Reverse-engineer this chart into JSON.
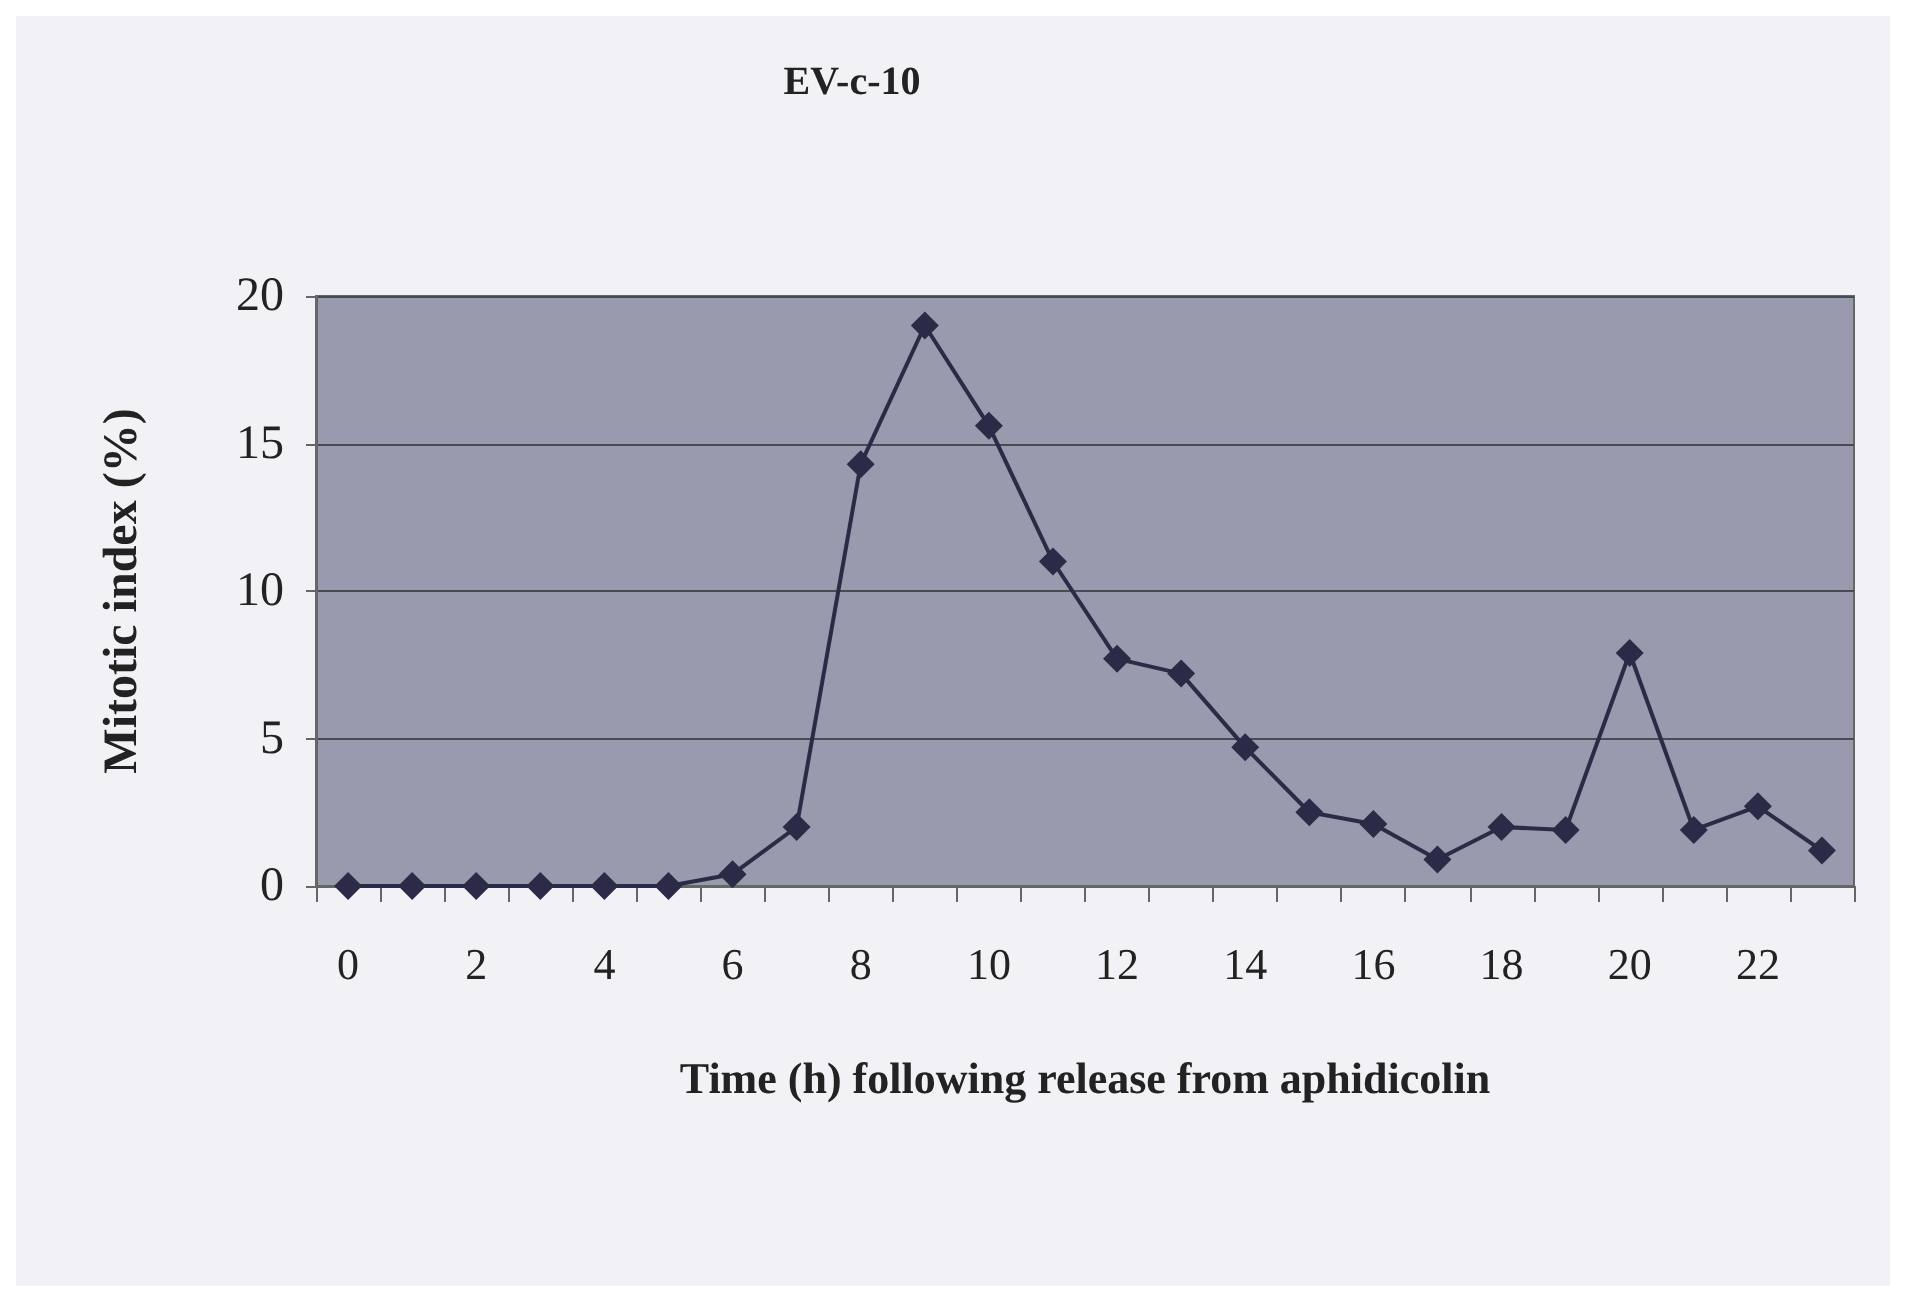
{
  "chart_data": {
    "type": "line",
    "title": "EV-c-10",
    "xlabel": "Time (h) following release from aphidicolin",
    "ylabel": "Mitotic index (%)",
    "categories": [
      "0",
      null,
      "2",
      null,
      "4",
      null,
      "6",
      null,
      "8",
      null,
      "10",
      null,
      "12",
      null,
      "14",
      null,
      "16",
      null,
      "18",
      null,
      "20",
      null,
      "22",
      null
    ],
    "series": [
      {
        "color": "#2b2b48",
        "values": [
          0,
          0,
          0,
          0,
          0,
          0,
          0.4,
          2,
          14.3,
          19,
          15.6,
          11,
          7.7,
          7.2,
          4.7,
          2.5,
          2.1,
          0.9,
          2,
          1.9,
          7.9,
          1.9,
          2.7,
          1.2
        ]
      }
    ],
    "ylim": [
      0,
      20
    ],
    "yticks": [
      0,
      5,
      10,
      15,
      20
    ],
    "grid": "y",
    "marker": "diamond",
    "line_style": "solid"
  }
}
